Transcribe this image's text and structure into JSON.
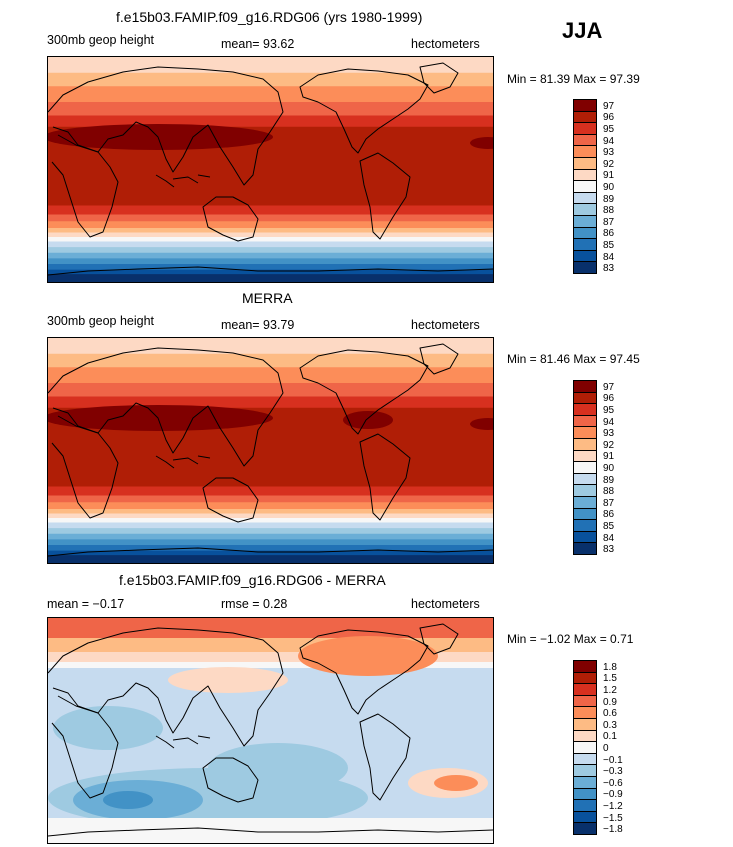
{
  "season": "JJA",
  "panels": [
    {
      "id": "model",
      "title": "f.e15b03.FAMIP.f09_g16.RDG06 (yrs 1980-1999)",
      "left_label": "300mb geop height",
      "center_label": "mean=  93.62",
      "right_label": "hectometers",
      "minmax": "Min =  81.39  Max =  97.39",
      "field": "abs",
      "levels": [
        "97",
        "96",
        "95",
        "94",
        "93",
        "92",
        "91",
        "90",
        "89",
        "88",
        "87",
        "86",
        "85",
        "84",
        "83"
      ]
    },
    {
      "id": "merra",
      "title": "MERRA",
      "left_label": "300mb geop height",
      "center_label": "mean=  93.79",
      "right_label": "hectometers",
      "minmax": "Min =  81.46  Max =  97.45",
      "field": "abs",
      "levels": [
        "97",
        "96",
        "95",
        "94",
        "93",
        "92",
        "91",
        "90",
        "89",
        "88",
        "87",
        "86",
        "85",
        "84",
        "83"
      ]
    },
    {
      "id": "diff",
      "title": "f.e15b03.FAMIP.f09_g16.RDG06 - MERRA",
      "left_label": "mean =  −0.17",
      "center_label": "rmse =   0.28",
      "right_label": "hectometers",
      "minmax": "Min =  −1.02  Max =   0.71",
      "field": "diff",
      "levels": [
        "1.8",
        "1.5",
        "1.2",
        "0.9",
        "0.6",
        "0.3",
        "0.1",
        "0",
        "−0.1",
        "−0.3",
        "−0.6",
        "−0.9",
        "−1.2",
        "−1.5",
        "−1.8"
      ]
    }
  ],
  "colors": [
    "#800000",
    "#b01e06",
    "#d7301f",
    "#ef6548",
    "#fc8d59",
    "#fdbb84",
    "#fdd9c4",
    "#f7f7f7",
    "#c6dbef",
    "#9ecae1",
    "#6baed6",
    "#4292c6",
    "#2171b5",
    "#08519c",
    "#08306b"
  ]
}
